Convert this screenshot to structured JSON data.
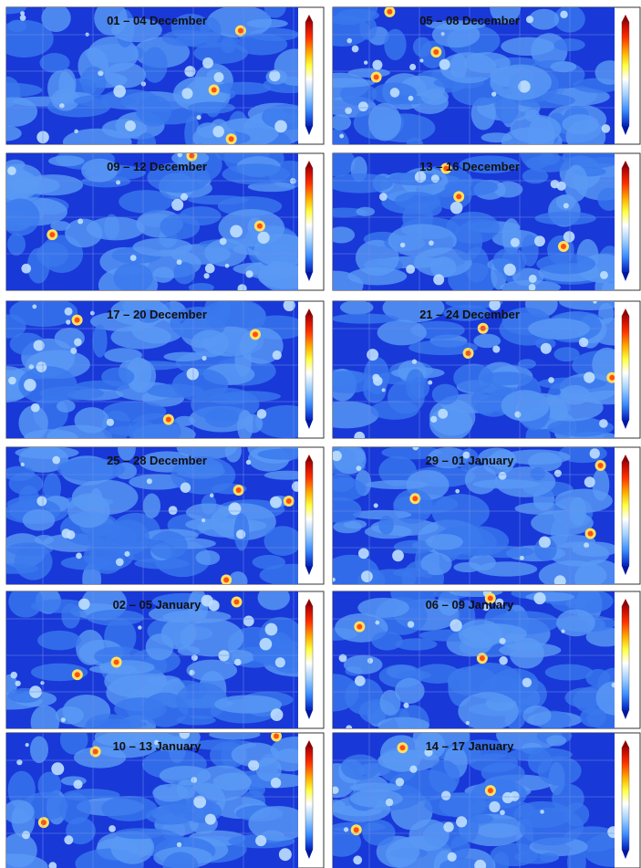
{
  "panels": [
    {
      "title": "01 – 04 December"
    },
    {
      "title": "05 – 08 December"
    },
    {
      "title": "09 – 12 December"
    },
    {
      "title": "13 – 16 December"
    },
    {
      "title": "17 – 20 December"
    },
    {
      "title": "21 – 24 December"
    },
    {
      "title": "25 – 28 December"
    },
    {
      "title": "29 – 01 January"
    },
    {
      "title": "02 – 05 January"
    },
    {
      "title": "06 – 09 January"
    },
    {
      "title": "10 – 13 January"
    },
    {
      "title": "14 – 17 January"
    }
  ]
}
